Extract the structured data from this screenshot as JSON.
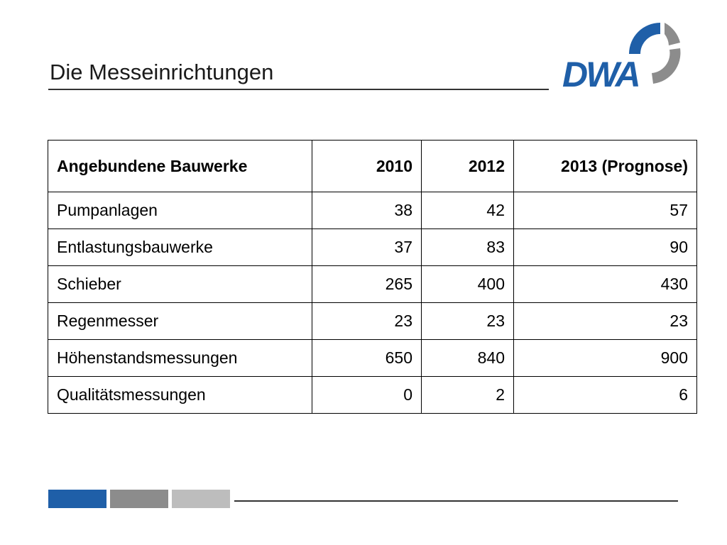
{
  "slide": {
    "title": "Die Messeinrichtungen",
    "logo_text": "DWA"
  },
  "table": {
    "headers": [
      "Angebundene Bauwerke",
      "2010",
      "2012",
      "2013 (Prognose)"
    ],
    "rows": [
      [
        "Pumpanlagen",
        "38",
        "42",
        "57"
      ],
      [
        "Entlastungsbauwerke",
        "37",
        "83",
        "90"
      ],
      [
        "Schieber",
        "265",
        "400",
        "430"
      ],
      [
        "Regenmesser",
        "23",
        "23",
        "23"
      ],
      [
        "Höhenstandsmessungen",
        "650",
        "840",
        "900"
      ],
      [
        "Qualitätsmessungen",
        "0",
        "2",
        "6"
      ]
    ]
  },
  "colors": {
    "brand_blue": "#1f5fa8",
    "brand_gray": "#8c8c8c",
    "brand_light_gray": "#bdbdbd"
  }
}
